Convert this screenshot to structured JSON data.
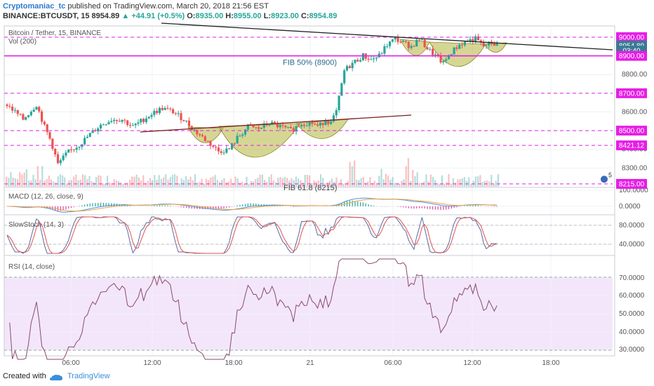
{
  "header": {
    "author": "Cryptomaniac_tc",
    "published_text": "published on TradingView.com, March 20, 2018 21:56 EST",
    "symbol": "BINANCE:BTCUSDT, 15",
    "last": "8954.89",
    "change": "+44.91 (+0.5%)",
    "o_label": "O:",
    "o": "8935.00",
    "h_label": "H:",
    "h": "8955.00",
    "l_label": "L:",
    "l": "8923.00",
    "c_label": "C:",
    "c": "8954.89",
    "up_icon": "triangle-up-icon"
  },
  "footer": {
    "created_with": "Created with",
    "brand": "TradingView",
    "logo_icon": "tradingview-cloud-icon"
  },
  "chart_data": [
    {
      "type": "candlestick",
      "title": "Bitcoin / Tether, 15, BINANCE",
      "volume_label": "Vol (200)",
      "y_ticks": [
        "8300.00",
        "8400.00",
        "8500.00",
        "8600.00",
        "8700.00",
        "8800.00",
        "8900.00",
        "9000.00"
      ],
      "ylim": [
        8200,
        9060
      ],
      "x_ticks": [
        "06:00",
        "12:00",
        "18:00",
        "21",
        "06:00",
        "12:00",
        "18:00"
      ],
      "price_badges": [
        {
          "text": "9000.00",
          "price": 9000,
          "color": "#e61ee6"
        },
        {
          "text": "8954.89",
          "price": 8954.89,
          "color": "#3a7a93"
        },
        {
          "text": "03:40",
          "price": 8928,
          "color": "#3a7a93"
        },
        {
          "text": "8900.00",
          "price": 8900,
          "color": "#e61ee6"
        },
        {
          "text": "8700.00",
          "price": 8700,
          "color": "#e61ee6"
        },
        {
          "text": "8500.00",
          "price": 8500,
          "color": "#e61ee6"
        },
        {
          "text": "8421.12",
          "price": 8421.12,
          "color": "#e61ee6"
        },
        {
          "text": "8215.00",
          "price": 8215,
          "color": "#e61ee6"
        }
      ],
      "levels": [
        {
          "price": 9000,
          "style": "dashed"
        },
        {
          "price": 8900,
          "style": "solid"
        },
        {
          "price": 8700,
          "style": "dashed"
        },
        {
          "price": 8500,
          "style": "dashed"
        },
        {
          "price": 8421.12,
          "style": "dashed"
        },
        {
          "price": 8215,
          "style": "dashed"
        }
      ],
      "annotations": [
        {
          "text": "FIB 50% (8900)",
          "price": 8900
        },
        {
          "text": "FIB 61.8 (8215)",
          "price": 8215
        }
      ],
      "badge_number": "5",
      "colors": {
        "up": "#26a69a",
        "down": "#ef5350",
        "level": "#e61ee6",
        "cup": "#b4b43c"
      }
    },
    {
      "type": "line",
      "title": "MACD (12, 26, close, 9)",
      "y_ticks": [
        "100.0000",
        "0.0000"
      ]
    },
    {
      "type": "line",
      "title": "SlowStoch (14, 3)",
      "y_ticks": [
        "80.0000",
        "40.0000"
      ]
    },
    {
      "type": "line",
      "title": "RSI (14, close)",
      "y_ticks": [
        "70.0000",
        "60.0000",
        "50.0000",
        "40.0000",
        "30.0000"
      ]
    }
  ]
}
